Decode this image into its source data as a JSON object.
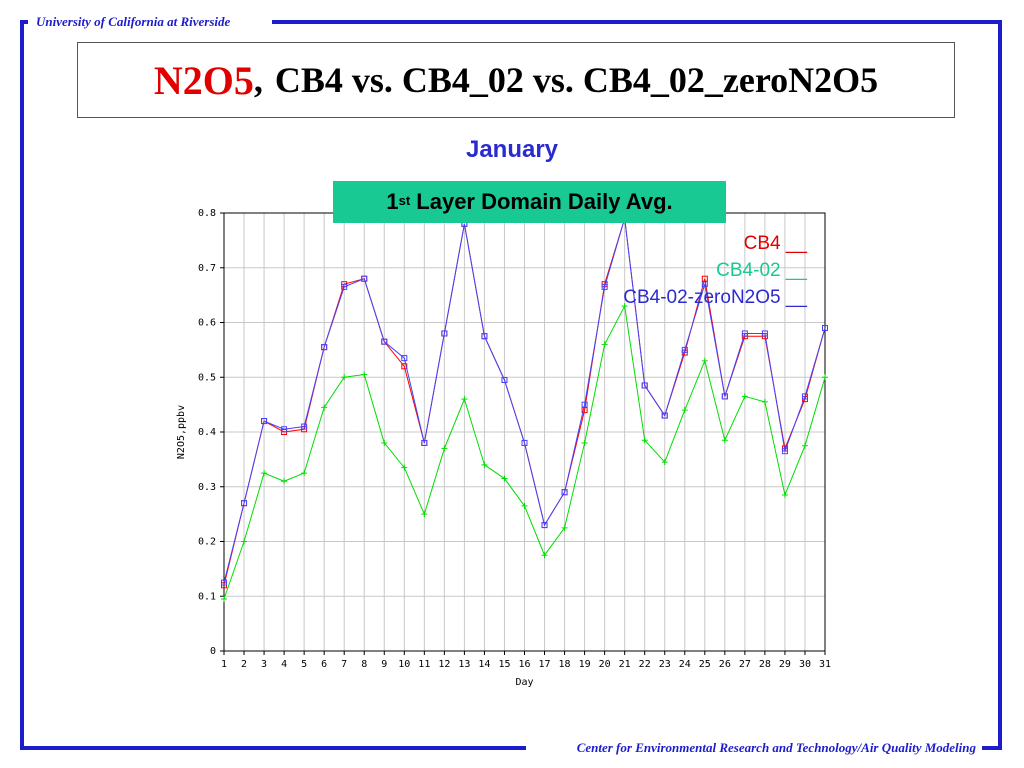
{
  "header": {
    "institution": "University of California at Riverside"
  },
  "footer": {
    "center": "Center for Environmental Research and Technology/Air Quality Modeling"
  },
  "title": {
    "species": "N2O5",
    "separator": ",",
    "comparison": "CB4 vs. CB4_02 vs. CB4_02_zeroN2O5"
  },
  "subtitle": "January",
  "banner": {
    "ordinal_num": "1",
    "ordinal_sup": "st",
    "rest": " Layer Domain Daily Avg."
  },
  "legend": [
    {
      "label": "CB4 __",
      "color": "#e00000"
    },
    {
      "label": "CB4-02 __",
      "color": "#18c994"
    },
    {
      "label": "CB4-02-zeroN2O5 __",
      "color": "#2a2ad0"
    }
  ],
  "chart_data": {
    "type": "line",
    "xlabel": "Day",
    "ylabel": "N2O5,ppbv",
    "ylim": [
      0,
      0.8
    ],
    "yticks": [
      "0",
      "0.1",
      "0.2",
      "0.3",
      "0.4",
      "0.5",
      "0.6",
      "0.7",
      "0.8"
    ],
    "x": [
      1,
      2,
      3,
      4,
      5,
      6,
      7,
      8,
      9,
      10,
      11,
      12,
      13,
      14,
      15,
      16,
      17,
      18,
      19,
      20,
      21,
      22,
      23,
      24,
      25,
      26,
      27,
      28,
      29,
      30,
      31
    ],
    "grid": true,
    "series": [
      {
        "name": "CB4",
        "color": "#ff0000",
        "marker": "square",
        "values": [
          0.12,
          0.27,
          0.42,
          0.4,
          0.405,
          0.555,
          0.67,
          0.68,
          0.565,
          0.52,
          0.38,
          0.58,
          0.78,
          0.575,
          0.495,
          0.38,
          0.23,
          0.29,
          0.44,
          0.67,
          0.79,
          0.485,
          0.43,
          0.545,
          0.68,
          0.465,
          0.575,
          0.575,
          0.37,
          0.46,
          0.59
        ]
      },
      {
        "name": "CB4-02",
        "color": "#00dd00",
        "marker": "plus",
        "values": [
          0.095,
          0.2,
          0.325,
          0.31,
          0.325,
          0.445,
          0.5,
          0.505,
          0.38,
          0.335,
          0.25,
          0.37,
          0.46,
          0.34,
          0.315,
          0.265,
          0.175,
          0.225,
          0.38,
          0.56,
          0.63,
          0.385,
          0.345,
          0.44,
          0.53,
          0.385,
          0.465,
          0.455,
          0.285,
          0.375,
          0.5
        ]
      },
      {
        "name": "CB4-02-zeroN2O5",
        "color": "#4444ff",
        "marker": "square",
        "values": [
          0.125,
          0.27,
          0.42,
          0.405,
          0.41,
          0.555,
          0.665,
          0.68,
          0.565,
          0.535,
          0.38,
          0.58,
          0.78,
          0.575,
          0.495,
          0.38,
          0.23,
          0.29,
          0.45,
          0.665,
          0.79,
          0.485,
          0.43,
          0.55,
          0.67,
          0.465,
          0.58,
          0.58,
          0.365,
          0.465,
          0.59
        ]
      }
    ]
  }
}
